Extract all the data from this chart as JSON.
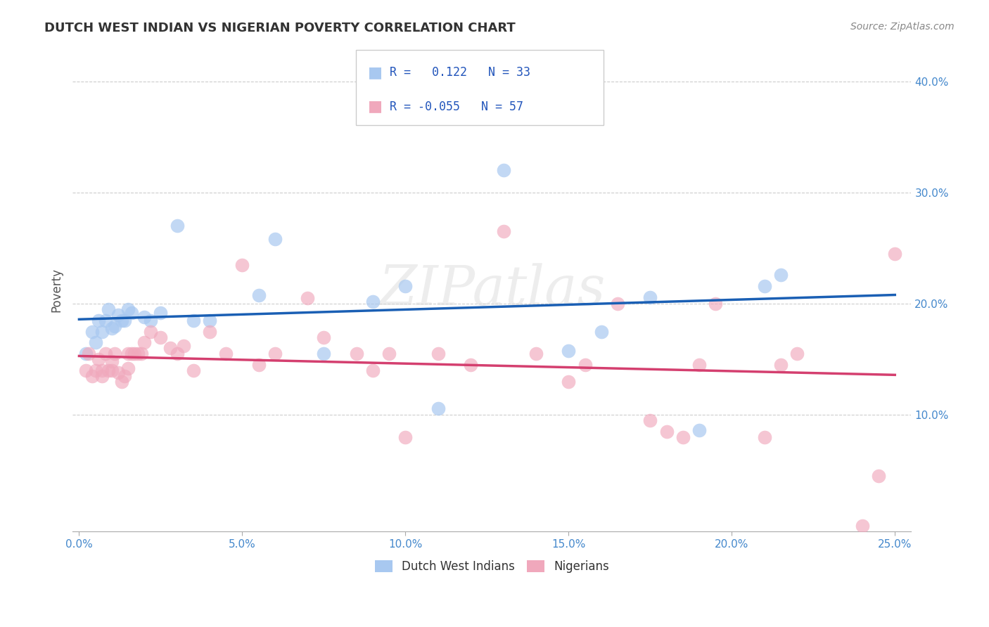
{
  "title": "DUTCH WEST INDIAN VS NIGERIAN POVERTY CORRELATION CHART",
  "source": "Source: ZipAtlas.com",
  "ylabel": "Poverty",
  "xlim": [
    -0.002,
    0.255
  ],
  "ylim": [
    -0.005,
    0.43
  ],
  "xtick_labels": [
    "0.0%",
    "5.0%",
    "10.0%",
    "15.0%",
    "20.0%",
    "25.0%"
  ],
  "xtick_vals": [
    0.0,
    0.05,
    0.1,
    0.15,
    0.2,
    0.25
  ],
  "ytick_labels": [
    "10.0%",
    "20.0%",
    "30.0%",
    "40.0%"
  ],
  "ytick_vals": [
    0.1,
    0.2,
    0.3,
    0.4
  ],
  "blue_color": "#a8c8f0",
  "pink_color": "#f0a8bc",
  "blue_line_color": "#1a5fb4",
  "pink_line_color": "#d43f6f",
  "legend_r_blue": "0.122",
  "legend_n_blue": "33",
  "legend_r_pink": "-0.055",
  "legend_n_pink": "57",
  "legend_label_blue": "Dutch West Indians",
  "legend_label_pink": "Nigerians",
  "watermark": "ZIPatlas",
  "blue_x": [
    0.002,
    0.004,
    0.005,
    0.006,
    0.007,
    0.008,
    0.009,
    0.01,
    0.011,
    0.012,
    0.013,
    0.014,
    0.015,
    0.016,
    0.02,
    0.022,
    0.025,
    0.03,
    0.035,
    0.04,
    0.055,
    0.06,
    0.075,
    0.09,
    0.1,
    0.11,
    0.13,
    0.15,
    0.16,
    0.175,
    0.19,
    0.21,
    0.215
  ],
  "blue_y": [
    0.155,
    0.175,
    0.165,
    0.185,
    0.175,
    0.185,
    0.195,
    0.178,
    0.18,
    0.19,
    0.185,
    0.185,
    0.195,
    0.192,
    0.188,
    0.185,
    0.192,
    0.27,
    0.185,
    0.185,
    0.208,
    0.258,
    0.155,
    0.202,
    0.216,
    0.106,
    0.32,
    0.158,
    0.175,
    0.206,
    0.086,
    0.216,
    0.226
  ],
  "pink_x": [
    0.002,
    0.003,
    0.004,
    0.005,
    0.006,
    0.007,
    0.007,
    0.008,
    0.009,
    0.01,
    0.01,
    0.011,
    0.012,
    0.013,
    0.014,
    0.015,
    0.015,
    0.016,
    0.017,
    0.018,
    0.019,
    0.02,
    0.022,
    0.025,
    0.028,
    0.03,
    0.032,
    0.035,
    0.04,
    0.045,
    0.05,
    0.055,
    0.06,
    0.07,
    0.075,
    0.085,
    0.09,
    0.095,
    0.1,
    0.11,
    0.12,
    0.13,
    0.14,
    0.15,
    0.155,
    0.165,
    0.175,
    0.18,
    0.185,
    0.19,
    0.195,
    0.21,
    0.215,
    0.22,
    0.24,
    0.245,
    0.25
  ],
  "pink_y": [
    0.14,
    0.155,
    0.135,
    0.14,
    0.15,
    0.14,
    0.135,
    0.155,
    0.14,
    0.148,
    0.14,
    0.155,
    0.138,
    0.13,
    0.135,
    0.142,
    0.155,
    0.155,
    0.155,
    0.155,
    0.155,
    0.165,
    0.175,
    0.17,
    0.16,
    0.155,
    0.162,
    0.14,
    0.175,
    0.155,
    0.235,
    0.145,
    0.155,
    0.205,
    0.17,
    0.155,
    0.14,
    0.155,
    0.08,
    0.155,
    0.145,
    0.265,
    0.155,
    0.13,
    0.145,
    0.2,
    0.095,
    0.085,
    0.08,
    0.145,
    0.2,
    0.08,
    0.145,
    0.155,
    0.0,
    0.045,
    0.245
  ],
  "blue_line_x0": 0.0,
  "blue_line_y0": 0.186,
  "blue_line_x1": 0.25,
  "blue_line_y1": 0.208,
  "pink_line_x0": 0.0,
  "pink_line_y0": 0.153,
  "pink_line_x1": 0.25,
  "pink_line_y1": 0.136,
  "background_color": "#ffffff",
  "grid_color": "#cccccc",
  "tick_color": "#4488cc",
  "title_color": "#333333",
  "source_color": "#888888",
  "ylabel_color": "#555555"
}
